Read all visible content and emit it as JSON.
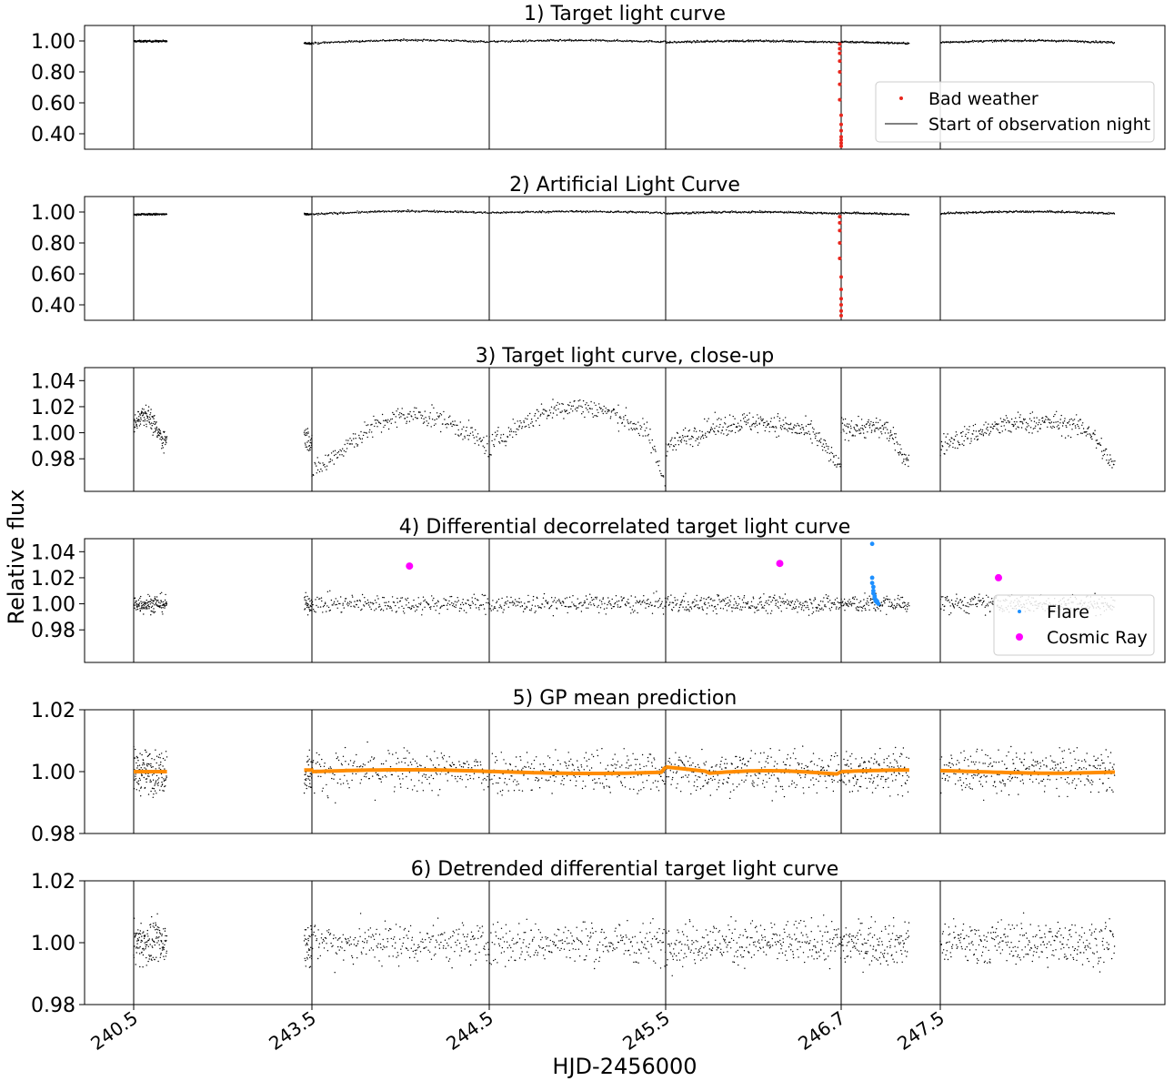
{
  "figure": {
    "ylabel": "Relative flux",
    "xlabel": "HJD-2456000"
  },
  "colors": {
    "data": "#000000",
    "bad_weather": "#e8251c",
    "flare": "#1e90ff",
    "cosmic_ray": "#ff00ff",
    "gp": "#ff8c00"
  },
  "chart_data": [
    {
      "type": "scatter",
      "title": "1) Target light curve",
      "yticks": [
        "1.00",
        "0.80",
        "0.60",
        "0.40"
      ],
      "ytick_values": [
        1.0,
        0.8,
        0.6,
        0.4
      ],
      "ylim": [
        0.3,
        1.1
      ],
      "legend": {
        "placement": "lower-right",
        "entries": [
          {
            "label": "Bad weather",
            "kind": "dot",
            "color": "#e8251c"
          },
          {
            "label": "Start of observation night",
            "kind": "line",
            "color": "#000000"
          }
        ]
      },
      "series": [
        {
          "name": "Bad weather",
          "x": [
            246.69,
            246.69,
            246.69,
            246.69,
            246.69,
            246.69,
            246.69,
            246.7,
            246.7,
            246.7,
            246.7,
            246.7,
            246.7,
            246.7
          ],
          "y": [
            0.98,
            0.95,
            0.92,
            0.87,
            0.8,
            0.72,
            0.62,
            0.52,
            0.46,
            0.42,
            0.38,
            0.36,
            0.34,
            0.32
          ]
        }
      ]
    },
    {
      "type": "scatter",
      "title": "2) Artificial Light Curve",
      "yticks": [
        "1.00",
        "0.80",
        "0.60",
        "0.40"
      ],
      "ytick_values": [
        1.0,
        0.8,
        0.6,
        0.4
      ],
      "ylim": [
        0.3,
        1.1
      ],
      "series": [
        {
          "name": "Bad weather",
          "x": [
            246.69,
            246.69,
            246.69,
            246.69,
            246.69,
            246.7,
            246.7,
            246.7,
            246.7,
            246.7,
            246.7
          ],
          "y": [
            0.97,
            0.93,
            0.88,
            0.8,
            0.7,
            0.58,
            0.5,
            0.44,
            0.4,
            0.36,
            0.33
          ]
        }
      ]
    },
    {
      "type": "scatter",
      "title": "3) Target light curve, close-up",
      "yticks": [
        "1.04",
        "1.02",
        "1.00",
        "0.98"
      ],
      "ytick_values": [
        1.04,
        1.02,
        1.0,
        0.98
      ],
      "ylim": [
        0.955,
        1.05
      ]
    },
    {
      "type": "scatter",
      "title": "4) Differential decorrelated target light curve",
      "yticks": [
        "1.04",
        "1.02",
        "1.00",
        "0.98"
      ],
      "ytick_values": [
        1.04,
        1.02,
        1.0,
        0.98
      ],
      "ylim": [
        0.955,
        1.05
      ],
      "legend": {
        "placement": "lower-right",
        "entries": [
          {
            "label": "Flare",
            "kind": "dot",
            "color": "#1e90ff"
          },
          {
            "label": "Cosmic Ray",
            "kind": "bigdot",
            "color": "#ff00ff"
          }
        ]
      },
      "series": [
        {
          "name": "Cosmic Ray",
          "x": [
            244.05,
            246.28,
            247.9
          ],
          "y": [
            1.029,
            1.031,
            1.02
          ]
        },
        {
          "name": "Flare",
          "x": [
            246.95,
            246.95,
            246.95,
            246.96,
            246.96,
            246.96,
            246.97,
            246.97,
            246.97,
            246.98,
            246.98,
            246.99,
            246.99,
            247.0
          ],
          "y": [
            1.046,
            1.02,
            1.016,
            1.013,
            1.01,
            1.008,
            1.006,
            1.005,
            1.004,
            1.003,
            1.002,
            1.002,
            1.001,
            1.0
          ]
        }
      ]
    },
    {
      "type": "scatter",
      "title": "5) GP mean prediction",
      "yticks": [
        "1.02",
        "1.00",
        "0.98"
      ],
      "ytick_values": [
        1.02,
        1.0,
        0.98
      ],
      "ylim": [
        0.98,
        1.02
      ]
    },
    {
      "type": "scatter",
      "title": "6) Detrended differential target light curve",
      "yticks": [
        "1.02",
        "1.00",
        "0.98"
      ],
      "ytick_values": [
        1.02,
        1.0,
        0.98
      ],
      "ylim": [
        0.98,
        1.02
      ]
    }
  ],
  "xaxis": {
    "ticks": [
      "240.5",
      "243.5",
      "244.5",
      "245.5",
      "246.7",
      "247.5"
    ],
    "night_starts": [
      240.5,
      243.5,
      244.5,
      245.5,
      246.7,
      247.5
    ]
  }
}
